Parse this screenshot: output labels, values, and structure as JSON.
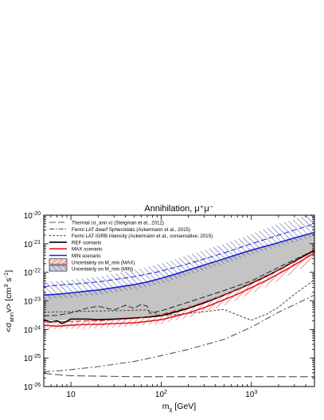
{
  "chart_data": {
    "type": "line",
    "title": "Annihilation, μ⁺μ⁻",
    "xlabel": "m_χ [GeV]",
    "ylabel": "<σ_ann v> [cm³ s⁻¹]",
    "xscale": "log",
    "yscale": "log",
    "xlim": [
      5,
      5000
    ],
    "ylim": [
      1e-26,
      1e-20
    ],
    "x_ticks": [
      {
        "value": 10,
        "label": "10"
      },
      {
        "value": 100,
        "label": "10",
        "sup": "2"
      },
      {
        "value": 1000,
        "label": "10",
        "sup": "3"
      }
    ],
    "y_ticks": [
      {
        "value": 1e-26,
        "label": "10",
        "sup": "-26"
      },
      {
        "value": 1e-25,
        "label": "10",
        "sup": "-25"
      },
      {
        "value": 1e-24,
        "label": "10",
        "sup": "-24"
      },
      {
        "value": 1e-23,
        "label": "10",
        "sup": "-23"
      },
      {
        "value": 1e-22,
        "label": "10",
        "sup": "-22"
      },
      {
        "value": 1e-21,
        "label": "10",
        "sup": "-21"
      },
      {
        "value": 1e-20,
        "label": "10",
        "sup": "-20"
      }
    ],
    "legend_position": "top-left",
    "legend": [
      {
        "label": "Thermal ⟨σ_ann v⟩ (Steigman et al., 2012)",
        "style": "longdash",
        "color": "#555555"
      },
      {
        "label": "Fermi LAT dwarf Spheroidals (Ackermann et al., 2015)",
        "style": "dashdot",
        "color": "#555555"
      },
      {
        "label": "Fermi LAT IGRB intensity (Ackermann et al., conservative, 2015)",
        "style": "shortdash",
        "color": "#555555"
      },
      {
        "label": "REF scenario",
        "style": "solid",
        "color": "#000000"
      },
      {
        "label": "MAX scenario",
        "style": "solid",
        "color": "#e8191c"
      },
      {
        "label": "MIN scenario",
        "style": "solid",
        "color": "#1c22d6"
      },
      {
        "label": "Uncertainty on M_min (MAX)",
        "style": "hatch",
        "color": "#e8191c"
      },
      {
        "label": "Uncertainty on M_min (MIN)",
        "style": "hatch",
        "color": "#2c3a8c"
      }
    ],
    "series": [
      {
        "name": "REF scenario",
        "x": [
          5,
          6,
          7,
          8,
          10,
          15,
          20,
          30,
          50,
          70,
          100,
          150,
          200,
          300,
          500,
          700,
          1000,
          1500,
          2000,
          3000,
          5000
        ],
        "y": [
          2.2e-24,
          1.8e-24,
          2e-24,
          1.6e-24,
          2.3e-24,
          2.3e-24,
          2.2e-24,
          2.3e-24,
          2.5e-24,
          2.7e-24,
          3e-24,
          4.2e-24,
          5.5e-24,
          8.5e-24,
          1.6e-23,
          2.5e-23,
          4.1e-23,
          7.5e-23,
          1.2e-22,
          2.4e-22,
          6e-22
        ]
      },
      {
        "name": "MAX scenario",
        "x": [
          5,
          7,
          10,
          15,
          20,
          30,
          50,
          70,
          100,
          150,
          200,
          300,
          500,
          700,
          1000,
          1500,
          2000,
          3000,
          5000
        ],
        "y": [
          1.4e-24,
          1.3e-24,
          1.4e-24,
          1.5e-24,
          1.5e-24,
          1.6e-24,
          1.7e-24,
          1.9e-24,
          2.2e-24,
          3e-24,
          3.8e-24,
          5.8e-24,
          1.1e-23,
          1.7e-23,
          2.9e-23,
          5.4e-23,
          8.8e-23,
          1.8e-22,
          4.8e-22
        ]
      },
      {
        "name": "MIN scenario",
        "x": [
          5,
          7,
          10,
          15,
          20,
          30,
          50,
          70,
          100,
          150,
          200,
          300,
          500,
          700,
          1000,
          1500,
          2000,
          3000,
          5000
        ],
        "y": [
          1.6e-23,
          1.7e-23,
          1.9e-23,
          2.2e-23,
          2.4e-23,
          2.9e-23,
          3.7e-23,
          4.6e-23,
          6.2e-23,
          9e-23,
          1.2e-22,
          1.8e-22,
          3e-22,
          4.2e-22,
          6e-22,
          8.5e-22,
          1.1e-21,
          1.6e-21,
          2.5e-21
        ]
      },
      {
        "name": "Thermal ⟨σ_ann v⟩ (Steigman et al., 2012)",
        "x": [
          5,
          7,
          10,
          20,
          50,
          100,
          1000,
          5000
        ],
        "y": [
          2.9e-26,
          2.6e-26,
          2.4e-26,
          2.3e-26,
          2.2e-26,
          2.2e-26,
          2.2e-26,
          2.2e-26
        ]
      },
      {
        "name": "Fermi LAT dwarf Spheroidals (Ackermann et al., 2015)",
        "x": [
          5,
          7,
          10,
          20,
          50,
          100,
          200,
          500,
          1000,
          2000,
          5000
        ],
        "y": [
          3.3e-26,
          3.5e-26,
          3.9e-26,
          5e-26,
          7.5e-26,
          1.2e-25,
          2e-25,
          4.5e-25,
          1.2e-24,
          4e-24,
          1.6e-23
        ]
      },
      {
        "name": "Fermi LAT IGRB intensity (Ackermann et al., conservative, 2015)",
        "x": [
          5,
          10,
          20,
          40,
          70,
          100,
          200,
          300,
          500,
          700,
          1000,
          1500,
          2000,
          3000,
          5000
        ],
        "y": [
          4e-24,
          4.2e-24,
          4.4e-24,
          4.6e-24,
          4.8e-24,
          3e-24,
          3.6e-24,
          4.2e-24,
          5e-24,
          3.2e-24,
          2.1e-24,
          3.5e-24,
          6e-24,
          1.7e-23,
          5.5e-23
        ]
      },
      {
        "name": "REF upper dashed",
        "x": [
          5,
          7,
          10,
          15,
          20,
          30,
          40,
          50,
          60,
          70,
          75,
          100,
          200,
          500,
          1000,
          2000,
          5000
        ],
        "y": [
          3e-24,
          3.1e-24,
          3.8e-24,
          5.5e-24,
          6.5e-24,
          4.8e-24,
          7e-24,
          5.5e-24,
          7.5e-24,
          6.5e-24,
          3.6e-24,
          4.5e-24,
          9e-24,
          2.3e-23,
          5e-23,
          1.5e-22,
          6e-22
        ]
      },
      {
        "name": "MAX dashed",
        "x": [
          5,
          10,
          20,
          50,
          100,
          200,
          500,
          1000,
          2000,
          5000
        ],
        "y": [
          1.8e-24,
          1.9e-24,
          2e-24,
          2.4e-24,
          3.3e-24,
          5.8e-24,
          1.6e-23,
          4.2e-23,
          1.2e-22,
          5.5e-22
        ]
      },
      {
        "name": "MIN dashed",
        "x": [
          5,
          10,
          20,
          50,
          100,
          200,
          500,
          1000,
          2000,
          5000
        ],
        "y": [
          3.2e-23,
          3.8e-23,
          4.6e-23,
          7e-23,
          1.1e-22,
          2e-22,
          4.8e-22,
          1e-21,
          2e-21,
          5e-21
        ]
      }
    ],
    "bands": [
      {
        "name": "REF-MIN band",
        "x": [
          5,
          7,
          10,
          15,
          20,
          30,
          50,
          70,
          100,
          150,
          200,
          300,
          500,
          700,
          1000,
          1500,
          2000,
          3000,
          5000
        ],
        "y_low": [
          2.2e-24,
          2e-24,
          2.3e-24,
          2.3e-24,
          2.2e-24,
          2.3e-24,
          2.5e-24,
          2.7e-24,
          3e-24,
          4.2e-24,
          5.5e-24,
          8.5e-24,
          1.6e-23,
          2.5e-23,
          4.1e-23,
          7.5e-23,
          1.2e-22,
          2.4e-22,
          6e-22
        ],
        "y_high": [
          1.6e-23,
          1.7e-23,
          1.9e-23,
          2.2e-23,
          2.4e-23,
          2.9e-23,
          3.7e-23,
          4.6e-23,
          6.2e-23,
          9e-23,
          1.2e-22,
          1.8e-22,
          3e-22,
          4.2e-22,
          6e-22,
          8.5e-22,
          1.1e-21,
          1.6e-21,
          2.5e-21
        ]
      },
      {
        "name": "Uncertainty on M_min (MIN)",
        "x": [
          5,
          10,
          20,
          50,
          100,
          200,
          500,
          1000,
          2000,
          5000
        ],
        "y_low": [
          1.1e-23,
          1.3e-23,
          1.6e-23,
          2.5e-23,
          4e-23,
          8e-23,
          2e-22,
          4.2e-22,
          8e-22,
          1.8e-21
        ],
        "y_high": [
          4.5e-23,
          5.5e-23,
          7e-23,
          1.2e-22,
          2e-22,
          4e-22,
          1e-21,
          2.2e-21,
          5e-21,
          1.2e-20
        ]
      },
      {
        "name": "Uncertainty on M_min (MAX)",
        "x": [
          5,
          10,
          20,
          50,
          100,
          200,
          500,
          1000,
          2000,
          5000
        ],
        "y_low": [
          1e-24,
          1.05e-24,
          1.1e-24,
          1.3e-24,
          1.6e-24,
          2.6e-24,
          7e-24,
          1.8e-23,
          5e-23,
          2.5e-22
        ],
        "y_high": [
          1.9e-24,
          2e-24,
          2.1e-24,
          2.6e-24,
          3.6e-24,
          6.5e-24,
          1.8e-23,
          4.6e-23,
          1.3e-22,
          6.5e-22
        ]
      }
    ]
  }
}
